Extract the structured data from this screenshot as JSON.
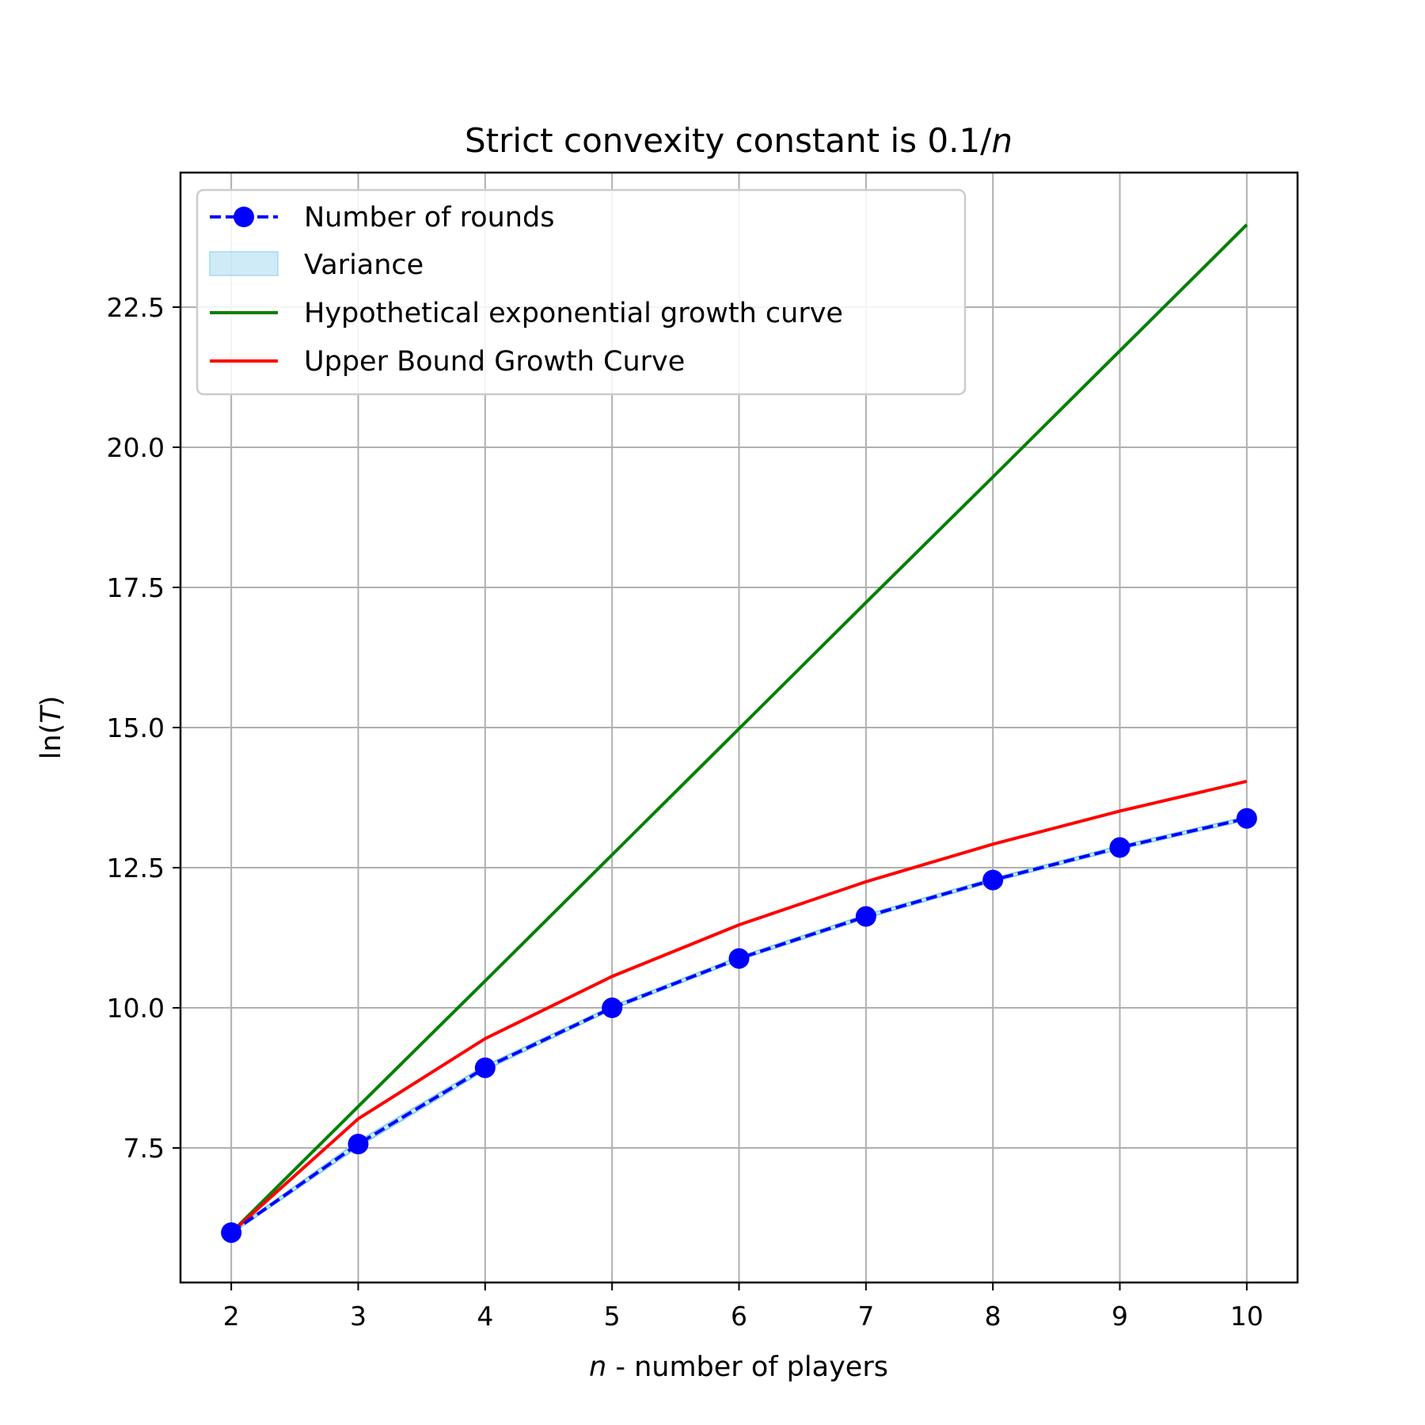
{
  "chart_data": {
    "type": "line",
    "title": {
      "prefix": "Strict convexity constant is 0.1/",
      "italic": "n"
    },
    "xlabel": {
      "italic": "n",
      "suffix": " - number of players"
    },
    "ylabel": {
      "prefix": "ln(",
      "italic": "T",
      "suffix": ")"
    },
    "xlim": [
      1.6,
      10.4
    ],
    "ylim": [
      5.1,
      24.9
    ],
    "x_ticks": [
      "2",
      "3",
      "4",
      "5",
      "6",
      "7",
      "8",
      "9",
      "10"
    ],
    "y_ticks": [
      "7.5",
      "10.0",
      "12.5",
      "15.0",
      "17.5",
      "20.0",
      "22.5"
    ],
    "grid": true,
    "legend_position": "upper-left",
    "x": [
      2,
      3,
      4,
      5,
      6,
      7,
      8,
      9,
      10
    ],
    "series": [
      {
        "name": "Number of rounds",
        "color": "#0000ff",
        "style": "dashed-markers",
        "values": [
          5.99,
          7.57,
          8.93,
          10.0,
          10.88,
          11.63,
          12.28,
          12.86,
          13.38
        ]
      },
      {
        "name": "Variance",
        "color": "#87ceeb",
        "style": "fill-band",
        "lower": [
          5.97,
          7.52,
          8.89,
          9.97,
          10.85,
          11.6,
          12.25,
          12.83,
          13.35
        ],
        "upper": [
          6.01,
          7.62,
          8.97,
          10.03,
          10.91,
          11.66,
          12.31,
          12.89,
          13.41
        ]
      },
      {
        "name": "Hypothetical exponential growth curve",
        "color": "#008000",
        "style": "solid",
        "values": [
          5.99,
          8.24,
          10.48,
          12.73,
          14.98,
          17.23,
          19.47,
          21.72,
          23.97
        ]
      },
      {
        "name": "Upper Bound Growth Curve",
        "color": "#ff0000",
        "style": "solid",
        "values": [
          5.99,
          8.02,
          9.45,
          10.56,
          11.48,
          12.25,
          12.92,
          13.51,
          14.04
        ]
      }
    ]
  }
}
